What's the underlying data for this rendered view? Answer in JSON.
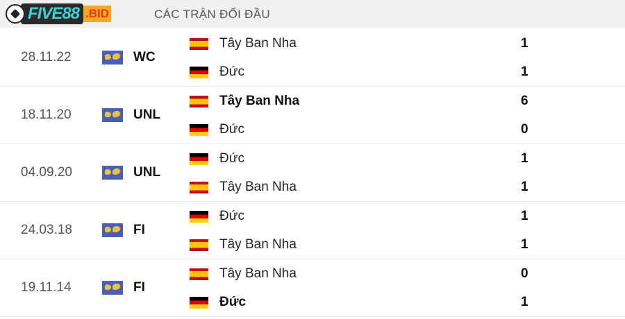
{
  "header": {
    "title": "CÁC TRẬN ĐỐI ĐẦU"
  },
  "logo": {
    "main": "FIVE88",
    "suffix": ".BID"
  },
  "matches": [
    {
      "date": "28.11.22",
      "competition": "WC",
      "teams": [
        {
          "name": "Tây Ban Nha",
          "flag": "spain",
          "score": "1",
          "winner": false
        },
        {
          "name": "Đức",
          "flag": "germany",
          "score": "1",
          "winner": false
        }
      ]
    },
    {
      "date": "18.11.20",
      "competition": "UNL",
      "teams": [
        {
          "name": "Tây Ban Nha",
          "flag": "spain",
          "score": "6",
          "winner": true
        },
        {
          "name": "Đức",
          "flag": "germany",
          "score": "0",
          "winner": false
        }
      ]
    },
    {
      "date": "04.09.20",
      "competition": "UNL",
      "teams": [
        {
          "name": "Đức",
          "flag": "germany",
          "score": "1",
          "winner": false
        },
        {
          "name": "Tây Ban Nha",
          "flag": "spain",
          "score": "1",
          "winner": false
        }
      ]
    },
    {
      "date": "24.03.18",
      "competition": "FI",
      "teams": [
        {
          "name": "Đức",
          "flag": "germany",
          "score": "1",
          "winner": false
        },
        {
          "name": "Tây Ban Nha",
          "flag": "spain",
          "score": "1",
          "winner": false
        }
      ]
    },
    {
      "date": "19.11.14",
      "competition": "FI",
      "teams": [
        {
          "name": "Tây Ban Nha",
          "flag": "spain",
          "score": "0",
          "winner": false
        },
        {
          "name": "Đức",
          "flag": "germany",
          "score": "1",
          "winner": true
        }
      ]
    }
  ]
}
